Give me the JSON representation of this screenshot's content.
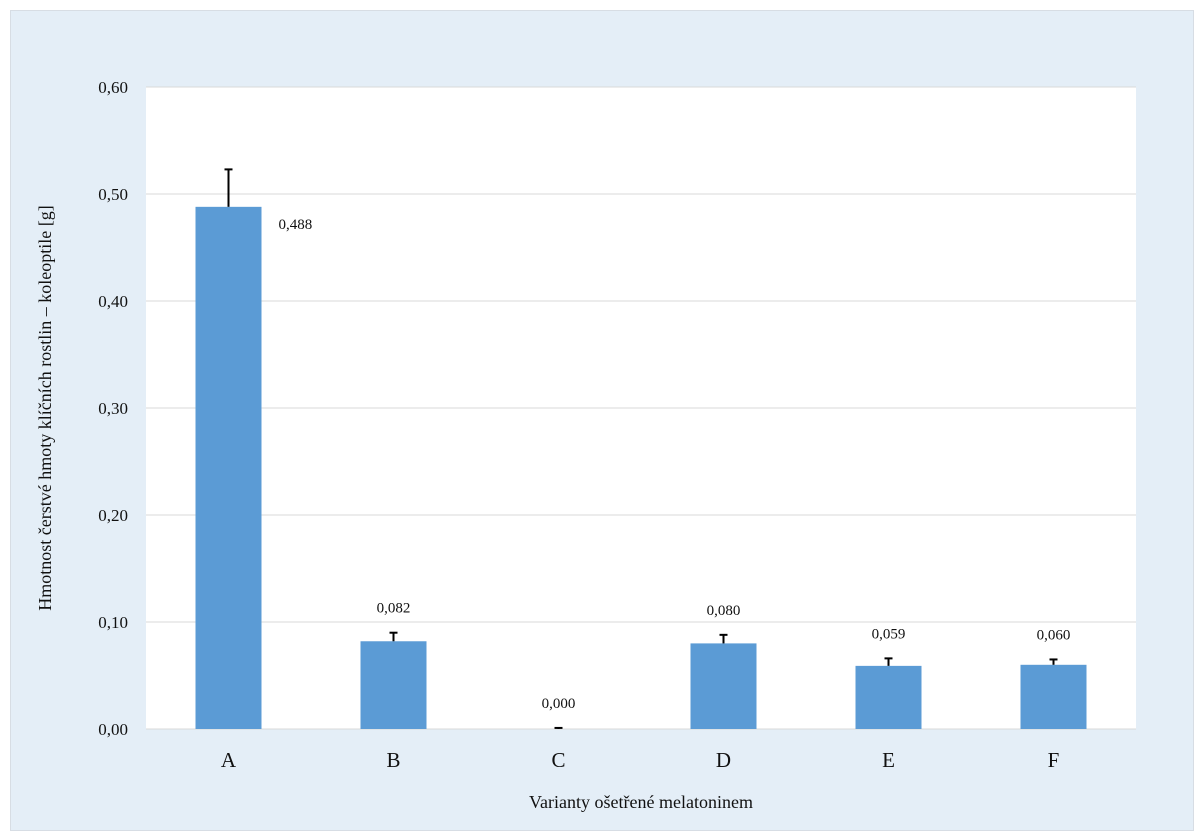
{
  "chart_data": {
    "type": "bar",
    "title": "",
    "xlabel": "Varianty ošetřené melatoninem",
    "ylabel": "Hmotnost čerstvé hmoty klíčních rostlin – koleoptile [g]",
    "categories": [
      "A",
      "B",
      "C",
      "D",
      "E",
      "F"
    ],
    "values": [
      0.488,
      0.082,
      0.0,
      0.08,
      0.059,
      0.06
    ],
    "data_labels": [
      "0,488",
      "0,082",
      "0,000",
      "0,080",
      "0,059",
      "0,060"
    ],
    "error_plus": [
      0.035,
      0.008,
      0.001,
      0.008,
      0.007,
      0.005
    ],
    "ylim": [
      0,
      0.6
    ],
    "yticks": [
      0,
      0.1,
      0.2,
      0.3,
      0.4,
      0.5,
      0.6
    ],
    "ytick_labels": [
      "0,00",
      "0,10",
      "0,20",
      "0,30",
      "0,40",
      "0,50",
      "0,60"
    ],
    "grid": true,
    "legend": "none",
    "bar_color": "#5b9bd5",
    "error_bar_color": "#000000",
    "plot_background": "#ffffff",
    "chart_background": "#e4eef7",
    "gridline_color": "#d9d9d9"
  }
}
